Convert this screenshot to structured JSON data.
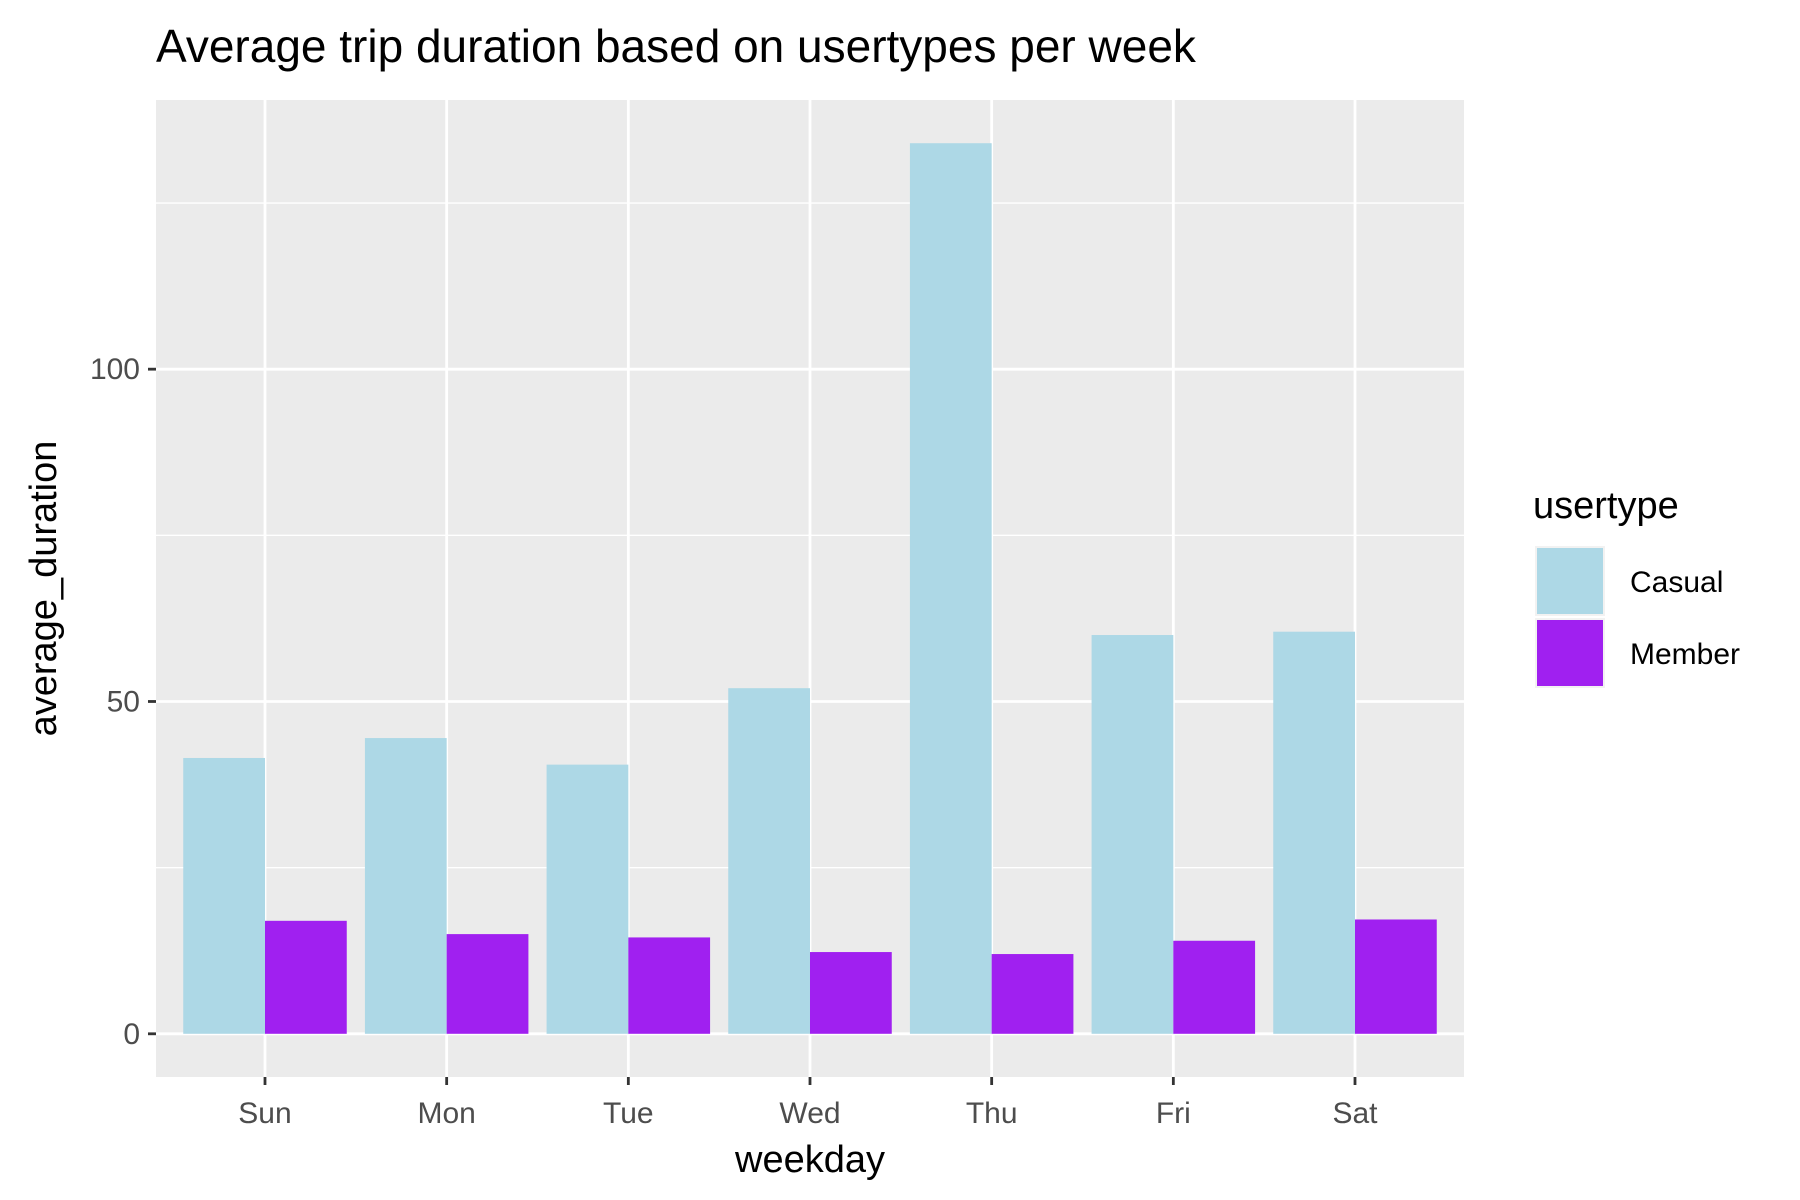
{
  "chart_data": {
    "type": "bar",
    "title": "Average trip duration based on usertypes per week",
    "xlabel": "weekday",
    "ylabel": "average_duration",
    "categories": [
      "Sun",
      "Mon",
      "Tue",
      "Wed",
      "Thu",
      "Fri",
      "Sat"
    ],
    "series": [
      {
        "name": "Casual",
        "color": "#ADD8E6",
        "values": [
          41.5,
          44.5,
          40.5,
          52,
          134,
          60,
          60.5
        ]
      },
      {
        "name": "Member",
        "color": "#A020F0",
        "values": [
          17,
          15,
          14.5,
          12.3,
          12,
          14,
          17.2
        ]
      }
    ],
    "ylim": [
      -6.5,
      140.5
    ],
    "yticks": [
      0,
      50,
      100
    ],
    "ytick_labels": [
      "0",
      "50",
      "100"
    ],
    "legend": {
      "title": "usertype",
      "position": "right"
    },
    "grid": true,
    "panel_background": "#EBEBEB",
    "grid_color": "#FFFFFF"
  }
}
